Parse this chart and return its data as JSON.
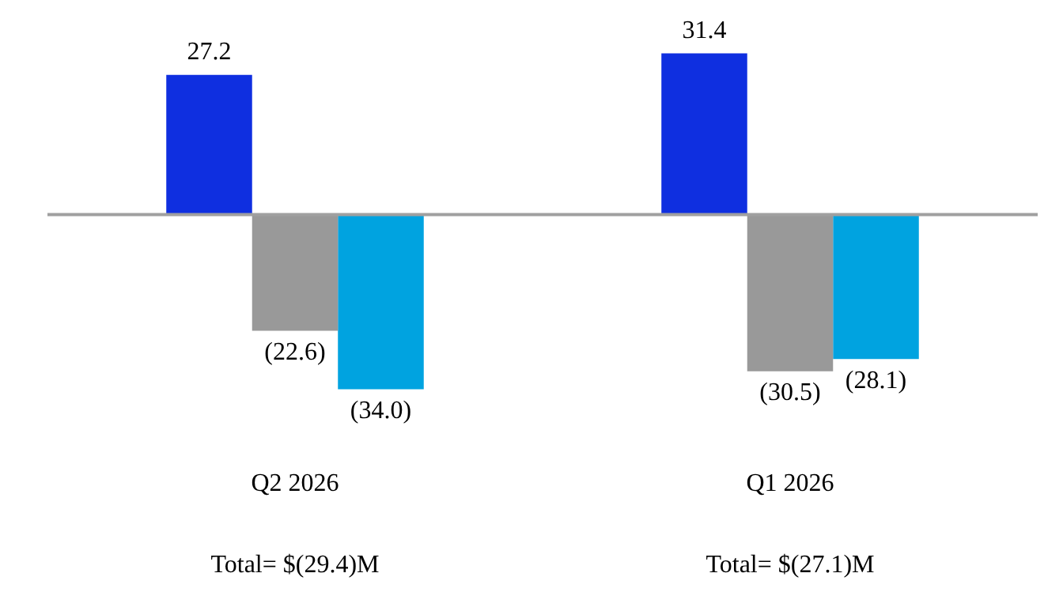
{
  "chart_data": {
    "type": "bar",
    "categories": [
      "Q2 2026",
      "Q1 2026"
    ],
    "series": [
      {
        "color": "#0f2fe0",
        "values": [
          27.2,
          31.4
        ],
        "value_labels": [
          "27.2",
          "31.4"
        ]
      },
      {
        "color": "#999999",
        "values": [
          -22.6,
          -30.5
        ],
        "value_labels": [
          "(22.6)",
          "(30.5)"
        ]
      },
      {
        "color": "#00a3e0",
        "values": [
          -34.0,
          -28.1
        ],
        "value_labels": [
          "(34.0)",
          "(28.1)"
        ]
      }
    ],
    "annotations": [
      "Total= $(29.4)M",
      "Total= $(27.1)M"
    ],
    "legend": false
  }
}
